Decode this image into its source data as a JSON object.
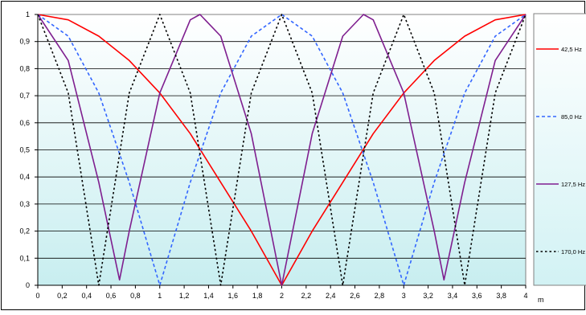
{
  "chart_data": {
    "type": "line",
    "title": "",
    "xlabel": "m",
    "ylabel": "",
    "xlim": [
      0,
      4
    ],
    "ylim": [
      0,
      1
    ],
    "x_ticks": [
      "0",
      "0,2",
      "0,4",
      "0,6",
      "0,8",
      "1",
      "1,2",
      "1,4",
      "1,6",
      "1,8",
      "2",
      "2,2",
      "2,4",
      "2,6",
      "2,8",
      "3",
      "3,2",
      "3,4",
      "3,6",
      "3,8",
      "4"
    ],
    "y_ticks": [
      "0",
      "0,1",
      "0,2",
      "0,3",
      "0,4",
      "0,5",
      "0,6",
      "0,7",
      "0,8",
      "0,9",
      "1"
    ],
    "grid": true,
    "legend_position": "right",
    "series": [
      {
        "name": "42,5 Hz",
        "color": "#ff0000",
        "dash": "solid",
        "x": [
          0,
          0.25,
          0.5,
          0.75,
          1,
          1.25,
          1.5,
          1.75,
          2,
          2.25,
          2.5,
          2.75,
          3,
          3.25,
          3.5,
          3.75,
          4
        ],
        "y": [
          1,
          0.98,
          0.92,
          0.83,
          0.71,
          0.56,
          0.38,
          0.2,
          0,
          0.2,
          0.38,
          0.56,
          0.71,
          0.83,
          0.92,
          0.98,
          1
        ]
      },
      {
        "name": "85,0 Hz",
        "color": "#3366ff",
        "dash": "dashed",
        "x": [
          0,
          0.25,
          0.5,
          0.75,
          1,
          1.25,
          1.5,
          1.75,
          2,
          2.25,
          2.5,
          2.75,
          3,
          3.25,
          3.5,
          3.75,
          4
        ],
        "y": [
          1,
          0.92,
          0.71,
          0.38,
          0,
          0.38,
          0.71,
          0.92,
          1,
          0.92,
          0.71,
          0.38,
          0,
          0.38,
          0.71,
          0.92,
          1
        ]
      },
      {
        "name": "127,5 Hz",
        "color": "#7f1f8f",
        "dash": "solid",
        "x": [
          0,
          0.25,
          0.5,
          0.67,
          0.75,
          1,
          1.25,
          1.33,
          1.5,
          1.75,
          2,
          2.25,
          2.5,
          2.67,
          2.75,
          3,
          3.25,
          3.33,
          3.5,
          3.75,
          4
        ],
        "y": [
          1,
          0.83,
          0.38,
          0.02,
          0.2,
          0.71,
          0.98,
          1,
          0.92,
          0.56,
          0,
          0.56,
          0.92,
          1,
          0.98,
          0.71,
          0.2,
          0.02,
          0.38,
          0.83,
          1
        ]
      },
      {
        "name": "170,0 Hz",
        "color": "#000000",
        "dash": "dotted",
        "x": [
          0,
          0.25,
          0.5,
          0.75,
          1,
          1.25,
          1.5,
          1.75,
          2,
          2.25,
          2.5,
          2.75,
          3,
          3.25,
          3.5,
          3.75,
          4
        ],
        "y": [
          1,
          0.71,
          0,
          0.71,
          1,
          0.71,
          0,
          0.71,
          1,
          0.71,
          0,
          0.71,
          1,
          0.71,
          0,
          0.71,
          1
        ]
      }
    ]
  }
}
